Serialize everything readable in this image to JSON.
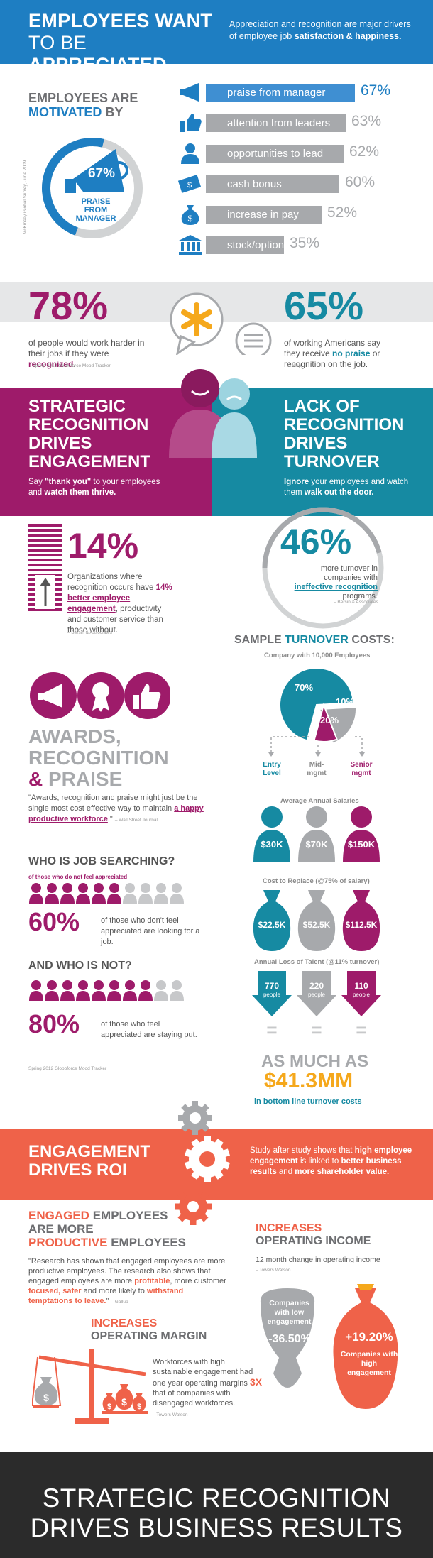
{
  "header": {
    "title_line1": "EMPLOYEES WANT",
    "title_line2_a": "TO BE ",
    "title_line2_b": "APPRECIATED",
    "subtitle_a": "Appreciation and recognition are major drivers of employee job ",
    "subtitle_b": "satisfaction & happiness."
  },
  "motivation": {
    "title_a": "EMPLOYEES ARE",
    "title_b": "MOTIVATED",
    "title_c": " BY",
    "source": "McKinsey Global Survey, June 2009",
    "donut_pct": "67%",
    "donut_label_1": "PRAISE",
    "donut_label_2": "FROM",
    "donut_label_3": "MANAGER",
    "bars": [
      {
        "label": "praise from manager",
        "pct": "67%",
        "value": 67,
        "icon": "megaphone-icon"
      },
      {
        "label": "attention from leaders",
        "pct": "63%",
        "value": 63,
        "icon": "thumbs-up-icon"
      },
      {
        "label": "opportunities to lead",
        "pct": "62%",
        "value": 62,
        "icon": "person-icon"
      },
      {
        "label": "cash bonus",
        "pct": "60%",
        "value": 60,
        "icon": "cash-icon"
      },
      {
        "label": "increase in pay",
        "pct": "52%",
        "value": 52,
        "icon": "money-bag-icon"
      },
      {
        "label": "stock/options",
        "pct": "35%",
        "value": 35,
        "icon": "bank-icon"
      }
    ]
  },
  "stat78": {
    "value": "78%",
    "desc_a": "of people would work harder in their jobs if they were ",
    "desc_b": "recognized",
    "desc_c": ".",
    "source": "– Spring 2012 Globoforce Mood Tracker"
  },
  "stat65": {
    "value": "65%",
    "desc_a": "of working Americans say they receive ",
    "desc_b": "no praise",
    "desc_c": " or recognition on the job.",
    "source": "– Gallup"
  },
  "strategic": {
    "title_1": "STRATEGIC",
    "title_2": "RECOGNITION",
    "title_3": "DRIVES",
    "title_4": "ENGAGEMENT",
    "sub_a": "Say ",
    "sub_b": "\"thank you\"",
    "sub_c": " to your employees and ",
    "sub_d": "watch them thrive."
  },
  "lack": {
    "title_1": "LACK OF",
    "title_2": "RECOGNITION",
    "title_3": "DRIVES",
    "title_4": "TURNOVER",
    "sub_a": "Ignore",
    "sub_b": " your employees and watch them ",
    "sub_c": "walk out the door."
  },
  "stat14": {
    "value": "14%",
    "desc_a": "Organizations where recognition occurs have ",
    "desc_b": "14% better employee engagement",
    "desc_c": ", productivity and customer service than those without.",
    "source": "– Bersin & Associates"
  },
  "stat46": {
    "value": "46%",
    "desc_a": "more turnover in companies with ",
    "desc_b": "ineffective recognition",
    "desc_c": " programs.",
    "source": "– Bersin & Associates"
  },
  "awards": {
    "title_1": "AWARDS,",
    "title_2": "RECOGNITION",
    "title_3a": "& ",
    "title_3b": "PRAISE",
    "quote_a": "\"Awards, recognition and praise might just be the single most cost effective way to maintain ",
    "quote_b": "a happy productive workforce",
    "quote_c": ".\"",
    "source": "– Wall Street Journal"
  },
  "turnover": {
    "title_a": "SAMPLE ",
    "title_b": "TURNOVER",
    "title_c": " COSTS:",
    "company": "Company with 10,000 Employees",
    "pie": [
      {
        "label": "70%",
        "value": 70,
        "color": "#168aa2"
      },
      {
        "label": "20%",
        "value": 20,
        "color": "#a7a9ac"
      },
      {
        "label": "10%",
        "value": 10,
        "color": "#9e1b6a"
      }
    ],
    "levels": [
      {
        "line1": "Entry",
        "line2": "Level",
        "salary": "$30K",
        "replace": "$22.5K",
        "loss": "770",
        "color": "#168aa2"
      },
      {
        "line1": "Mid-",
        "line2": "mgmt",
        "salary": "$70K",
        "replace": "$52.5K",
        "loss": "220",
        "color": "#a7a9ac"
      },
      {
        "line1": "Senior",
        "line2": "mgmt",
        "salary": "$150K",
        "replace": "$112.5K",
        "loss": "110",
        "color": "#9e1b6a"
      }
    ],
    "avg_salaries": "Average Annual Salaries",
    "cost_replace": "Cost to Replace (@75% of salary)",
    "annual_loss": "Annual Loss of Talent (@11% turnover)",
    "people": "people",
    "equals": "=",
    "as_much_as": "AS MUCH AS",
    "total": "$41.3MM",
    "bottom_line": "in bottom line turnover costs"
  },
  "searching": {
    "title": "WHO IS JOB SEARCHING?",
    "caption": "of those who do not feel appreciated",
    "value": "60%",
    "desc": "of those who don't feel appreciated are looking for a job.",
    "filled": 6,
    "total": 10
  },
  "notsearching": {
    "title": "AND WHO IS NOT?",
    "value": "80%",
    "desc": "of those who feel appreciated are staying put.",
    "filled": 8,
    "total": 10,
    "source": "Spring 2012 Globoforce Mood Tracker"
  },
  "roi": {
    "title_1": "ENGAGEMENT",
    "title_2": "DRIVES ROI",
    "desc_a": "Study after study shows that ",
    "desc_b": "high employee engagement",
    "desc_c": " is linked to ",
    "desc_d": "better business results",
    "desc_e": " and ",
    "desc_f": "more shareholder value."
  },
  "engaged": {
    "t1a": "ENGAGED",
    "t1b": " EMPLOYEES",
    "t2": "ARE MORE",
    "t3a": "PRODUCTIVE",
    "t3b": " EMPLOYEES",
    "quote_a": "\"Research has shown that engaged employees are more productive employees. The research also shows that engaged employees are more ",
    "quote_b": "profitable",
    "quote_c": ", more customer ",
    "quote_d": "focused, safer",
    "quote_e": " and more likely to ",
    "quote_f": "withstand temptations to leave.",
    "quote_g": "\"",
    "source": "– Gallup"
  },
  "margin": {
    "t1": "INCREASES",
    "t2": "OPERATING MARGIN",
    "desc_a": "Workforces with high sustainable engagement had one year operating margins ",
    "desc_b": "3X",
    "desc_c": " that of companies with disengaged workforces.",
    "source": "– Towers Watson"
  },
  "income": {
    "t1": "INCREASES",
    "t2": "OPERATING INCOME",
    "desc": "12 month change in operating income",
    "source": "– Towers Watson",
    "low_label": "Companies with low engagement",
    "low_value": "-36.50%",
    "high_value": "+19.20%",
    "high_label": "Companies with high engagement"
  },
  "footer": {
    "line1": "STRATEGIC RECOGNITION",
    "line2": "DRIVES BUSINESS RESULTS"
  },
  "colors": {
    "blue": "#1e7ec2",
    "purple": "#9e1b6a",
    "teal": "#168aa2",
    "grey": "#a7a9ac",
    "orange": "#ef6249",
    "gold": "#f5a81c"
  }
}
